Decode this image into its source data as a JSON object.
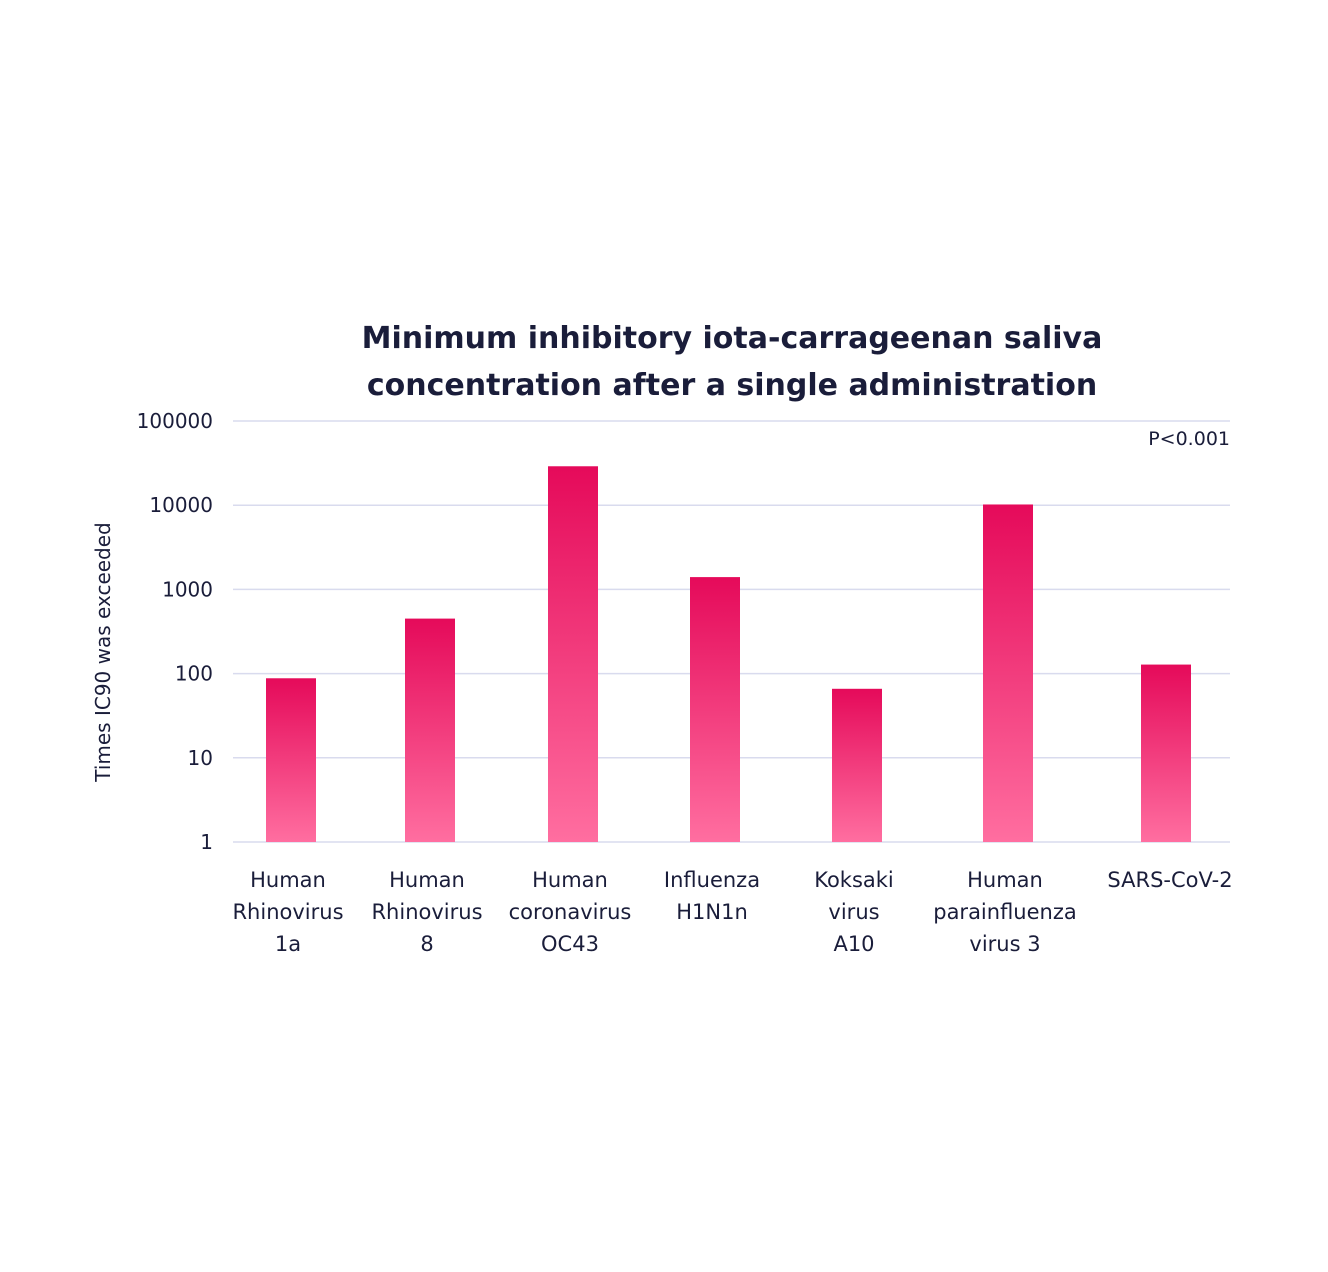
{
  "chart_data": {
    "type": "bar",
    "title_lines": [
      "Minimum inhibitory iota-carrageenan saliva",
      "concentration after a single administration"
    ],
    "ylabel": "Times IC90 was exceeded",
    "xlabel": "",
    "yscale": "log",
    "ylim": [
      1,
      100000
    ],
    "yticks": [
      "1",
      "10",
      "100",
      "1000",
      "10000",
      "100000"
    ],
    "categories": [
      [
        "Human",
        "Rhinovirus",
        "1a"
      ],
      [
        "Human",
        "Rhinovirus",
        "8"
      ],
      [
        "Human",
        "coronavirus",
        "OC43"
      ],
      [
        "Influenza",
        "H1N1n"
      ],
      [
        "Koksaki",
        "virus",
        "A10"
      ],
      [
        "Human",
        "parainfluenza",
        "virus 3"
      ],
      [
        "SARS-CoV-2"
      ]
    ],
    "values": [
      88,
      450,
      29000,
      1400,
      66,
      10200,
      128
    ],
    "annotation": "P<0.001",
    "grid": true,
    "colors": {
      "bar_top": "#e50a5a",
      "bar_bottom": "#ff6ea0",
      "grid": "#d9dbee",
      "text": "#1a1d3a"
    }
  }
}
